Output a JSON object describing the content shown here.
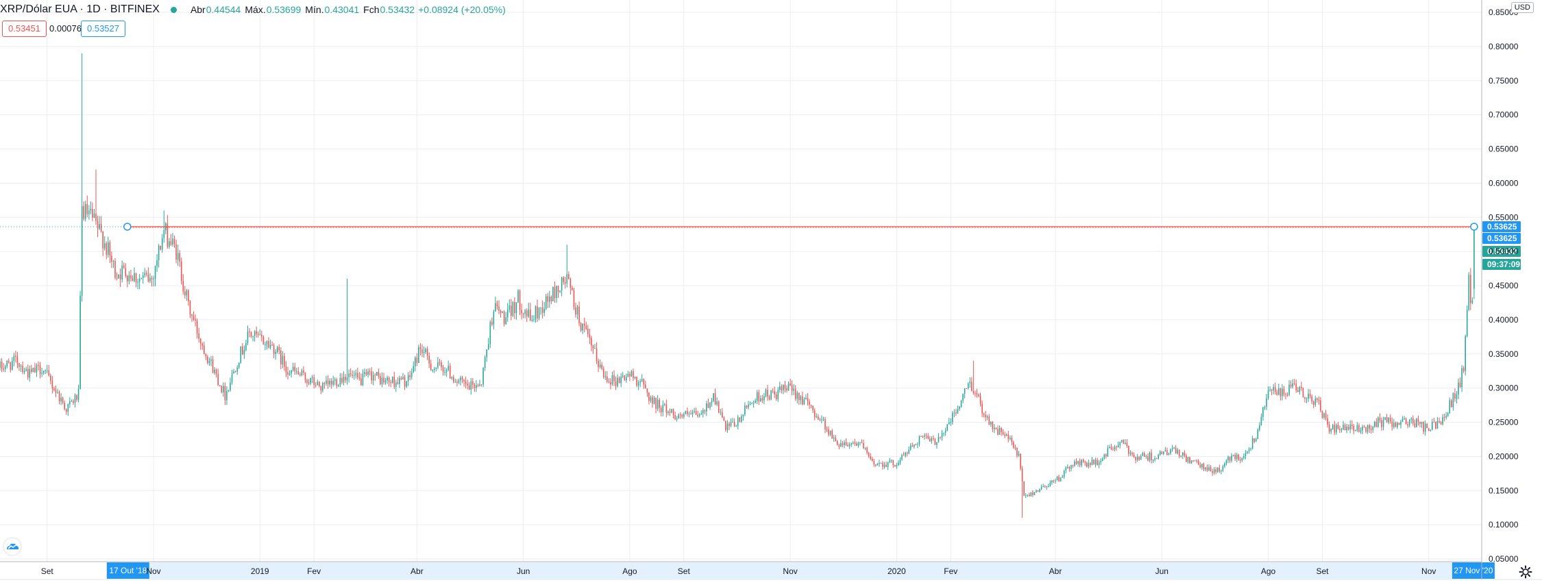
{
  "header": {
    "symbol": "XRP/Dólar EUA · 1D · BITFINEX",
    "open_label": "Abr",
    "open": "0.44544",
    "high_label": "Máx.",
    "high": "0.53699",
    "low_label": "Mín.",
    "low": "0.43041",
    "close_label": "Fch",
    "close": "0.53432",
    "change": "+0.08924 (+20.05%)"
  },
  "quote": {
    "bid": "0.53451",
    "spread": "0.00076",
    "ask": "0.53527"
  },
  "currency": "USD",
  "colors": {
    "up": "#26a69a",
    "down": "#ef5350",
    "accent": "#2196f3",
    "grid": "#ecedf1"
  },
  "icons": {
    "logo": "tradingview-cloud-icon",
    "settings": "gear-icon"
  },
  "chart_data": {
    "type": "candlestick",
    "symbol": "XRP/Dólar EUA",
    "interval": "1D",
    "exchange": "BITFINEX",
    "currency": "USD",
    "ylim": [
      0.05,
      0.83
    ],
    "y_ticks": [
      "0.05000",
      "0.10000",
      "0.15000",
      "0.20000",
      "0.25000",
      "0.30000",
      "0.35000",
      "0.40000",
      "0.45000",
      "0.50000",
      "0.55000",
      "0.60000",
      "0.65000",
      "0.70000",
      "0.75000",
      "0.80000",
      "0.85000"
    ],
    "x_ticks": [
      {
        "date": "2018-09-01",
        "label": "Set"
      },
      {
        "date": "2018-11-01",
        "label": "Nov"
      },
      {
        "date": "2019-01-01",
        "label": "2019"
      },
      {
        "date": "2019-02-01",
        "label": "Fev"
      },
      {
        "date": "2019-04-01",
        "label": "Abr"
      },
      {
        "date": "2019-06-01",
        "label": "Jun"
      },
      {
        "date": "2019-08-01",
        "label": "Ago"
      },
      {
        "date": "2019-09-01",
        "label": "Set"
      },
      {
        "date": "2019-11-01",
        "label": "Nov"
      },
      {
        "date": "2020-01-01",
        "label": "2020"
      },
      {
        "date": "2020-02-01",
        "label": "Fev"
      },
      {
        "date": "2020-04-01",
        "label": "Abr"
      },
      {
        "date": "2020-06-01",
        "label": "Jun"
      },
      {
        "date": "2020-08-01",
        "label": "Ago"
      },
      {
        "date": "2020-09-01",
        "label": "Set"
      },
      {
        "date": "2020-11-01",
        "label": "Nov"
      }
    ],
    "x_range": [
      "2018-08-05",
      "2020-11-29"
    ],
    "close_series": [
      [
        "2018-08-05",
        0.33
      ],
      [
        "2018-08-15",
        0.34
      ],
      [
        "2018-08-22",
        0.32
      ],
      [
        "2018-08-29",
        0.33
      ],
      [
        "2018-09-05",
        0.3
      ],
      [
        "2018-09-12",
        0.27
      ],
      [
        "2018-09-19",
        0.29
      ],
      [
        "2018-09-21",
        0.56
      ],
      [
        "2018-09-26",
        0.55
      ],
      [
        "2018-10-03",
        0.52
      ],
      [
        "2018-10-10",
        0.47
      ],
      [
        "2018-10-17",
        0.47
      ],
      [
        "2018-10-24",
        0.46
      ],
      [
        "2018-10-31",
        0.46
      ],
      [
        "2018-11-07",
        0.53
      ],
      [
        "2018-11-14",
        0.5
      ],
      [
        "2018-11-21",
        0.42
      ],
      [
        "2018-11-28",
        0.37
      ],
      [
        "2018-12-05",
        0.33
      ],
      [
        "2018-12-12",
        0.29
      ],
      [
        "2018-12-19",
        0.34
      ],
      [
        "2018-12-26",
        0.38
      ],
      [
        "2019-01-02",
        0.37
      ],
      [
        "2019-01-09",
        0.36
      ],
      [
        "2019-01-16",
        0.33
      ],
      [
        "2019-01-23",
        0.32
      ],
      [
        "2019-01-30",
        0.31
      ],
      [
        "2019-02-06",
        0.3
      ],
      [
        "2019-02-13",
        0.31
      ],
      [
        "2019-02-20",
        0.32
      ],
      [
        "2019-02-27",
        0.31
      ],
      [
        "2019-03-06",
        0.32
      ],
      [
        "2019-03-13",
        0.31
      ],
      [
        "2019-03-20",
        0.31
      ],
      [
        "2019-03-27",
        0.31
      ],
      [
        "2019-04-03",
        0.36
      ],
      [
        "2019-04-10",
        0.33
      ],
      [
        "2019-04-17",
        0.33
      ],
      [
        "2019-04-24",
        0.31
      ],
      [
        "2019-05-01",
        0.3
      ],
      [
        "2019-05-08",
        0.31
      ],
      [
        "2019-05-15",
        0.42
      ],
      [
        "2019-05-22",
        0.4
      ],
      [
        "2019-05-29",
        0.43
      ],
      [
        "2019-06-05",
        0.4
      ],
      [
        "2019-06-12",
        0.42
      ],
      [
        "2019-06-19",
        0.44
      ],
      [
        "2019-06-26",
        0.46
      ],
      [
        "2019-07-03",
        0.4
      ],
      [
        "2019-07-10",
        0.36
      ],
      [
        "2019-07-17",
        0.32
      ],
      [
        "2019-07-24",
        0.31
      ],
      [
        "2019-07-31",
        0.32
      ],
      [
        "2019-08-07",
        0.31
      ],
      [
        "2019-08-14",
        0.28
      ],
      [
        "2019-08-21",
        0.27
      ],
      [
        "2019-08-28",
        0.26
      ],
      [
        "2019-09-04",
        0.26
      ],
      [
        "2019-09-11",
        0.26
      ],
      [
        "2019-09-18",
        0.29
      ],
      [
        "2019-09-25",
        0.24
      ],
      [
        "2019-10-02",
        0.25
      ],
      [
        "2019-10-09",
        0.28
      ],
      [
        "2019-10-16",
        0.29
      ],
      [
        "2019-10-23",
        0.29
      ],
      [
        "2019-10-30",
        0.3
      ],
      [
        "2019-11-06",
        0.29
      ],
      [
        "2019-11-13",
        0.27
      ],
      [
        "2019-11-20",
        0.25
      ],
      [
        "2019-11-27",
        0.22
      ],
      [
        "2019-12-04",
        0.22
      ],
      [
        "2019-12-11",
        0.22
      ],
      [
        "2019-12-18",
        0.19
      ],
      [
        "2019-12-25",
        0.19
      ],
      [
        "2020-01-01",
        0.19
      ],
      [
        "2020-01-08",
        0.21
      ],
      [
        "2020-01-15",
        0.23
      ],
      [
        "2020-01-22",
        0.22
      ],
      [
        "2020-01-29",
        0.24
      ],
      [
        "2020-02-05",
        0.27
      ],
      [
        "2020-02-12",
        0.31
      ],
      [
        "2020-02-19",
        0.27
      ],
      [
        "2020-02-26",
        0.24
      ],
      [
        "2020-03-04",
        0.23
      ],
      [
        "2020-03-11",
        0.2
      ],
      [
        "2020-03-14",
        0.14
      ],
      [
        "2020-03-21",
        0.15
      ],
      [
        "2020-03-28",
        0.16
      ],
      [
        "2020-04-04",
        0.17
      ],
      [
        "2020-04-11",
        0.19
      ],
      [
        "2020-04-18",
        0.19
      ],
      [
        "2020-04-25",
        0.19
      ],
      [
        "2020-05-02",
        0.21
      ],
      [
        "2020-05-09",
        0.22
      ],
      [
        "2020-05-16",
        0.2
      ],
      [
        "2020-05-23",
        0.2
      ],
      [
        "2020-05-30",
        0.2
      ],
      [
        "2020-06-06",
        0.21
      ],
      [
        "2020-06-13",
        0.2
      ],
      [
        "2020-06-20",
        0.19
      ],
      [
        "2020-06-27",
        0.18
      ],
      [
        "2020-07-04",
        0.18
      ],
      [
        "2020-07-11",
        0.2
      ],
      [
        "2020-07-18",
        0.2
      ],
      [
        "2020-07-25",
        0.23
      ],
      [
        "2020-08-01",
        0.3
      ],
      [
        "2020-08-08",
        0.29
      ],
      [
        "2020-08-15",
        0.3
      ],
      [
        "2020-08-22",
        0.29
      ],
      [
        "2020-08-29",
        0.28
      ],
      [
        "2020-09-05",
        0.24
      ],
      [
        "2020-09-12",
        0.24
      ],
      [
        "2020-09-19",
        0.24
      ],
      [
        "2020-09-26",
        0.24
      ],
      [
        "2020-10-03",
        0.25
      ],
      [
        "2020-10-10",
        0.25
      ],
      [
        "2020-10-17",
        0.25
      ],
      [
        "2020-10-24",
        0.25
      ],
      [
        "2020-10-31",
        0.24
      ],
      [
        "2020-11-07",
        0.25
      ],
      [
        "2020-11-14",
        0.28
      ],
      [
        "2020-11-18",
        0.3
      ],
      [
        "2020-11-21",
        0.33
      ],
      [
        "2020-11-24",
        0.47
      ],
      [
        "2020-11-25",
        0.43
      ],
      [
        "2020-11-26",
        0.43
      ],
      [
        "2020-11-27",
        0.534
      ]
    ],
    "spikes": [
      [
        "2018-09-21",
        0.79
      ],
      [
        "2018-09-29",
        0.62
      ],
      [
        "2018-11-07",
        0.56
      ],
      [
        "2019-02-20",
        0.46
      ],
      [
        "2019-06-26",
        0.51
      ],
      [
        "2020-02-14",
        0.34
      ],
      [
        "2020-03-13",
        0.11
      ]
    ],
    "horizontal_line": {
      "value": 0.53625,
      "start_date": "2018-10-17",
      "end_date": "2020-11-27",
      "color": "#ef5350"
    },
    "price_labels": [
      {
        "value": "0.53625",
        "color": "#2196f3"
      },
      {
        "value": "0.53625",
        "color": "#2196f3"
      },
      {
        "value": "0.53432",
        "color": "#26a69a"
      },
      {
        "value": "09:37:09",
        "color": "#26a69a"
      }
    ],
    "crosshair_labels": {
      "start": "17 Out '18",
      "end": "27 Nov '20"
    }
  }
}
